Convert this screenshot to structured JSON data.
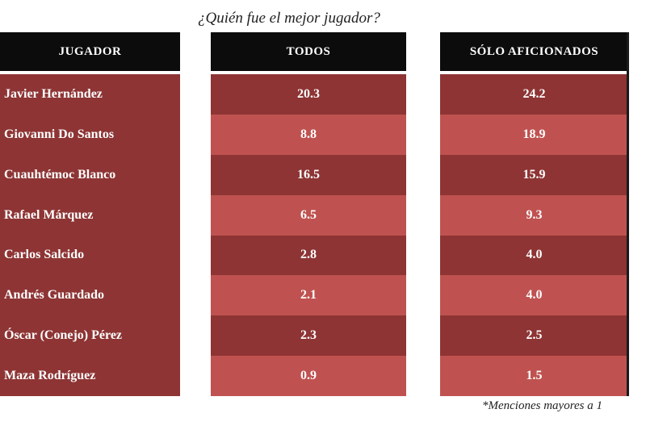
{
  "title": "¿Quién fue el mejor jugador?",
  "footnote": "*Menciones mayores a 1",
  "colors": {
    "header_bg": "#0c0c0c",
    "row_dark": "#8e3434",
    "row_light": "#bf5250",
    "text": "#ffffff"
  },
  "chart_data": {
    "type": "table",
    "title": "¿Quién fue el mejor jugador?",
    "columns": [
      "JUGADOR",
      "TODOS",
      "SÓLO AFICIONADOS"
    ],
    "rows": [
      {
        "player": "Javier Hernández",
        "todos": "20.3",
        "aficionados": "24.2"
      },
      {
        "player": "Giovanni Do Santos",
        "todos": "8.8",
        "aficionados": "18.9"
      },
      {
        "player": "Cuauhtémoc Blanco",
        "todos": "16.5",
        "aficionados": "15.9"
      },
      {
        "player": "Rafael Márquez",
        "todos": "6.5",
        "aficionados": "9.3"
      },
      {
        "player": "Carlos Salcido",
        "todos": "2.8",
        "aficionados": "4.0"
      },
      {
        "player": "Andrés Guardado",
        "todos": "2.1",
        "aficionados": "4.0"
      },
      {
        "player": "Óscar (Conejo) Pérez",
        "todos": "2.3",
        "aficionados": "2.5"
      },
      {
        "player": "Maza Rodríguez",
        "todos": "0.9",
        "aficionados": "1.5"
      }
    ]
  }
}
